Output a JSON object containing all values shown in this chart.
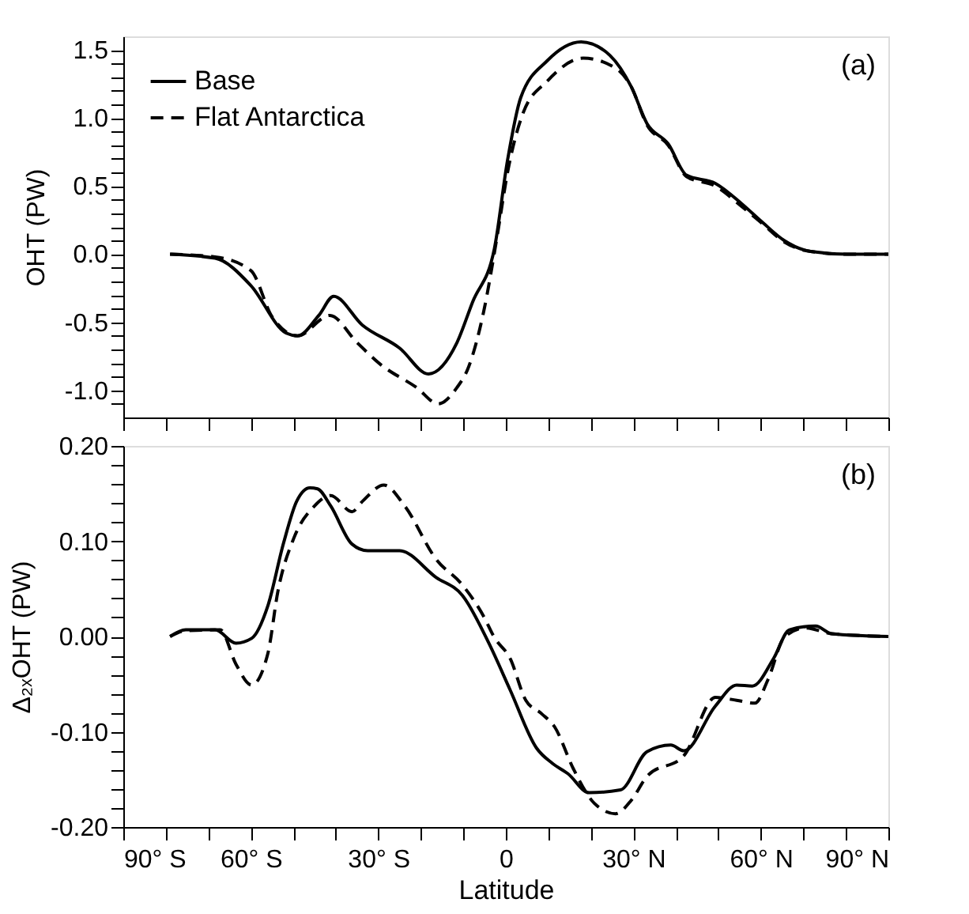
{
  "chart_data": [
    {
      "type": "line",
      "ylabel": "OHT (PW)",
      "annotations": [
        "(a)"
      ],
      "legend": "top left",
      "grid": false,
      "tick_labels": "y",
      "marker": "none",
      "xlim": [
        -90,
        90
      ],
      "xticks": [
        {
          "value": -90,
          "label": null
        },
        {
          "value": -80,
          "label": null
        },
        {
          "value": -70,
          "label": null
        },
        {
          "value": -60,
          "label": null
        },
        {
          "value": -50,
          "label": null
        },
        {
          "value": -40,
          "label": null
        },
        {
          "value": -30,
          "label": null
        },
        {
          "value": -20,
          "label": null
        },
        {
          "value": -10,
          "label": null
        },
        {
          "value": 0,
          "label": null
        },
        {
          "value": 10,
          "label": null
        },
        {
          "value": 20,
          "label": null
        },
        {
          "value": 30,
          "label": null
        },
        {
          "value": 40,
          "label": null
        },
        {
          "value": 50,
          "label": null
        },
        {
          "value": 60,
          "label": null
        },
        {
          "value": 70,
          "label": null
        },
        {
          "value": 80,
          "label": null
        },
        {
          "value": 90,
          "label": null
        }
      ],
      "ylim": [
        -1.2,
        1.6
      ],
      "yticks": [
        {
          "value": -1.1,
          "label": null
        },
        {
          "value": -1.0,
          "label": "-1.0"
        },
        {
          "value": -0.9,
          "label": null
        },
        {
          "value": -0.8,
          "label": null
        },
        {
          "value": -0.7,
          "label": null
        },
        {
          "value": -0.6,
          "label": null
        },
        -0.5,
        {
          "value": -0.4,
          "label": null
        },
        {
          "value": -0.3,
          "label": null
        },
        {
          "value": -0.2,
          "label": null
        },
        {
          "value": -0.1,
          "label": null
        },
        {
          "value": 0,
          "label": "0.0"
        },
        {
          "value": 0.1,
          "label": null
        },
        {
          "value": 0.2,
          "label": null
        },
        {
          "value": 0.3,
          "label": null
        },
        {
          "value": 0.4,
          "label": null
        },
        0.5,
        {
          "value": 0.6,
          "label": null
        },
        {
          "value": 0.7,
          "label": null
        },
        {
          "value": 0.8,
          "label": null
        },
        {
          "value": 0.9,
          "label": null
        },
        {
          "value": 1,
          "label": "1.0"
        },
        {
          "value": 1.1,
          "label": null
        },
        {
          "value": 1.2,
          "label": null
        },
        {
          "value": 1.3,
          "label": null
        },
        {
          "value": 1.4,
          "label": null
        },
        1.5
      ],
      "series": [
        {
          "name": "Base",
          "color": "#000000",
          "line_style": "solid",
          "x": [
            -79,
            -68.4,
            -60,
            -51.7,
            -49,
            -44,
            -40.5,
            -33.8,
            -25,
            -18.2,
            -11.5,
            -7.8,
            -2.7,
            0.4,
            3.5,
            9.7,
            17.7,
            24.5,
            29.5,
            33.2,
            38.2,
            42.5,
            49.3,
            55.5,
            60.5,
            65.5,
            71.7,
            80.3,
            90
          ],
          "values": [
            0,
            -0.03,
            -0.23,
            -0.58,
            -0.6,
            -0.45,
            -0.31,
            -0.52,
            -0.69,
            -0.88,
            -0.65,
            -0.35,
            0.04,
            0.69,
            1.15,
            1.42,
            1.56,
            1.46,
            1.23,
            0.96,
            0.81,
            0.58,
            0.52,
            0.37,
            0.23,
            0.1,
            0.02,
            0,
            0
          ]
        },
        {
          "name": "Flat Antarctica",
          "color": "#000000",
          "line_style": "dashed",
          "x": [
            -79,
            -68.4,
            -60,
            -55,
            -49,
            -41.4,
            -35,
            -29.5,
            -21,
            -15.9,
            -11.5,
            -8.9,
            -5.2,
            -2.1,
            0.4,
            4.1,
            9.7,
            18.2,
            25.7,
            29.5,
            33.2,
            38.2,
            42.5,
            49.3,
            55.5,
            60.5,
            65.5,
            71.7,
            80.3,
            90
          ],
          "values": [
            0,
            -0.02,
            -0.12,
            -0.46,
            -0.6,
            -0.45,
            -0.65,
            -0.81,
            -0.98,
            -1.1,
            -0.98,
            -0.84,
            -0.42,
            0.12,
            0.6,
            1.04,
            1.27,
            1.44,
            1.37,
            1.23,
            0.95,
            0.8,
            0.57,
            0.5,
            0.35,
            0.22,
            0.09,
            0.02,
            0,
            0
          ]
        }
      ]
    },
    {
      "type": "line",
      "xlabel": "Latitude",
      "ylabel": "Δ₂ₓOHT (PW)",
      "annotations": [
        "(b)"
      ],
      "grid": false,
      "marker": "none",
      "xlim": [
        -90,
        90
      ],
      "xticks": [
        {
          "value": -90,
          "label": "90° S"
        },
        {
          "value": -80,
          "label": null
        },
        {
          "value": -70,
          "label": null
        },
        {
          "value": -60,
          "label": "60° S"
        },
        {
          "value": -50,
          "label": null
        },
        {
          "value": -40,
          "label": null
        },
        {
          "value": -30,
          "label": "30° S"
        },
        {
          "value": -20,
          "label": null
        },
        {
          "value": -10,
          "label": null
        },
        0,
        {
          "value": 10,
          "label": null
        },
        {
          "value": 20,
          "label": null
        },
        {
          "value": 30,
          "label": "30° N"
        },
        {
          "value": 40,
          "label": null
        },
        {
          "value": 50,
          "label": null
        },
        {
          "value": 60,
          "label": "60° N"
        },
        {
          "value": 70,
          "label": null
        },
        {
          "value": 80,
          "label": null
        },
        {
          "value": 90,
          "label": "90° N"
        }
      ],
      "ylim": [
        -0.2,
        0.2
      ],
      "yticks": [
        {
          "value": -0.2,
          "label": "-0.20"
        },
        {
          "value": -0.18,
          "label": null
        },
        {
          "value": -0.16,
          "label": null
        },
        {
          "value": -0.14,
          "label": null
        },
        {
          "value": -0.12,
          "label": null
        },
        {
          "value": -0.1,
          "label": "-0.10"
        },
        {
          "value": -0.08,
          "label": null
        },
        {
          "value": -0.06,
          "label": null
        },
        {
          "value": -0.04,
          "label": null
        },
        {
          "value": -0.02,
          "label": null
        },
        {
          "value": 0,
          "label": "0.00"
        },
        {
          "value": 0.02,
          "label": null
        },
        {
          "value": 0.04,
          "label": null
        },
        {
          "value": 0.06,
          "label": null
        },
        {
          "value": 0.08,
          "label": null
        },
        {
          "value": 0.1,
          "label": "0.10"
        },
        {
          "value": 0.12,
          "label": null
        },
        {
          "value": 0.14,
          "label": null
        },
        {
          "value": 0.16,
          "label": null
        },
        {
          "value": 0.18,
          "label": null
        },
        {
          "value": 0.2,
          "label": "0.20"
        }
      ],
      "series": [
        {
          "color": "#000000",
          "line_style": "solid",
          "x": [
            -79,
            -75.3,
            -68.4,
            -63.5,
            -59.8,
            -56,
            -52.3,
            -49.2,
            -46.1,
            -44.3,
            -41.2,
            -36.2,
            -32.5,
            -25,
            -16.4,
            -10.2,
            -4,
            1,
            7.2,
            10.9,
            14.6,
            19.6,
            27,
            33.2,
            38.8,
            41.9,
            49.3,
            54.3,
            58,
            63,
            66.7,
            72.9,
            76.6,
            90
          ],
          "values": [
            0,
            0.007,
            0.007,
            -0.007,
            -0.002,
            0.032,
            0.098,
            0.142,
            0.156,
            0.155,
            0.137,
            0.097,
            0.09,
            0.09,
            0.062,
            0.043,
            -0.007,
            -0.056,
            -0.117,
            -0.133,
            -0.144,
            -0.164,
            -0.161,
            -0.121,
            -0.114,
            -0.12,
            -0.073,
            -0.051,
            -0.052,
            -0.023,
            0.007,
            0.011,
            0.003,
            0
          ]
        },
        {
          "color": "#000000",
          "line_style": "dashed",
          "x": [
            -79,
            -75.3,
            -67.2,
            -63.5,
            -59.8,
            -56,
            -53.6,
            -49.9,
            -45,
            -41.2,
            -36.2,
            -33.7,
            -28.7,
            -23.8,
            -16.4,
            -10.2,
            -5.2,
            -2.7,
            1,
            4.7,
            8.4,
            11.5,
            15.9,
            20.8,
            25.8,
            29.5,
            33.2,
            41.9,
            49.3,
            54.3,
            58.6,
            61.7,
            65.5,
            70.4,
            76.6,
            90
          ],
          "values": [
            0,
            0.006,
            0.007,
            -0.029,
            -0.051,
            -0.018,
            0.048,
            0.103,
            0.137,
            0.148,
            0.131,
            0.142,
            0.159,
            0.137,
            0.081,
            0.054,
            0.021,
            -0.001,
            -0.023,
            -0.067,
            -0.081,
            -0.095,
            -0.139,
            -0.175,
            -0.186,
            -0.172,
            -0.147,
            -0.125,
            -0.064,
            -0.067,
            -0.07,
            -0.045,
            -0.001,
            0.009,
            0.003,
            0
          ]
        }
      ]
    }
  ]
}
